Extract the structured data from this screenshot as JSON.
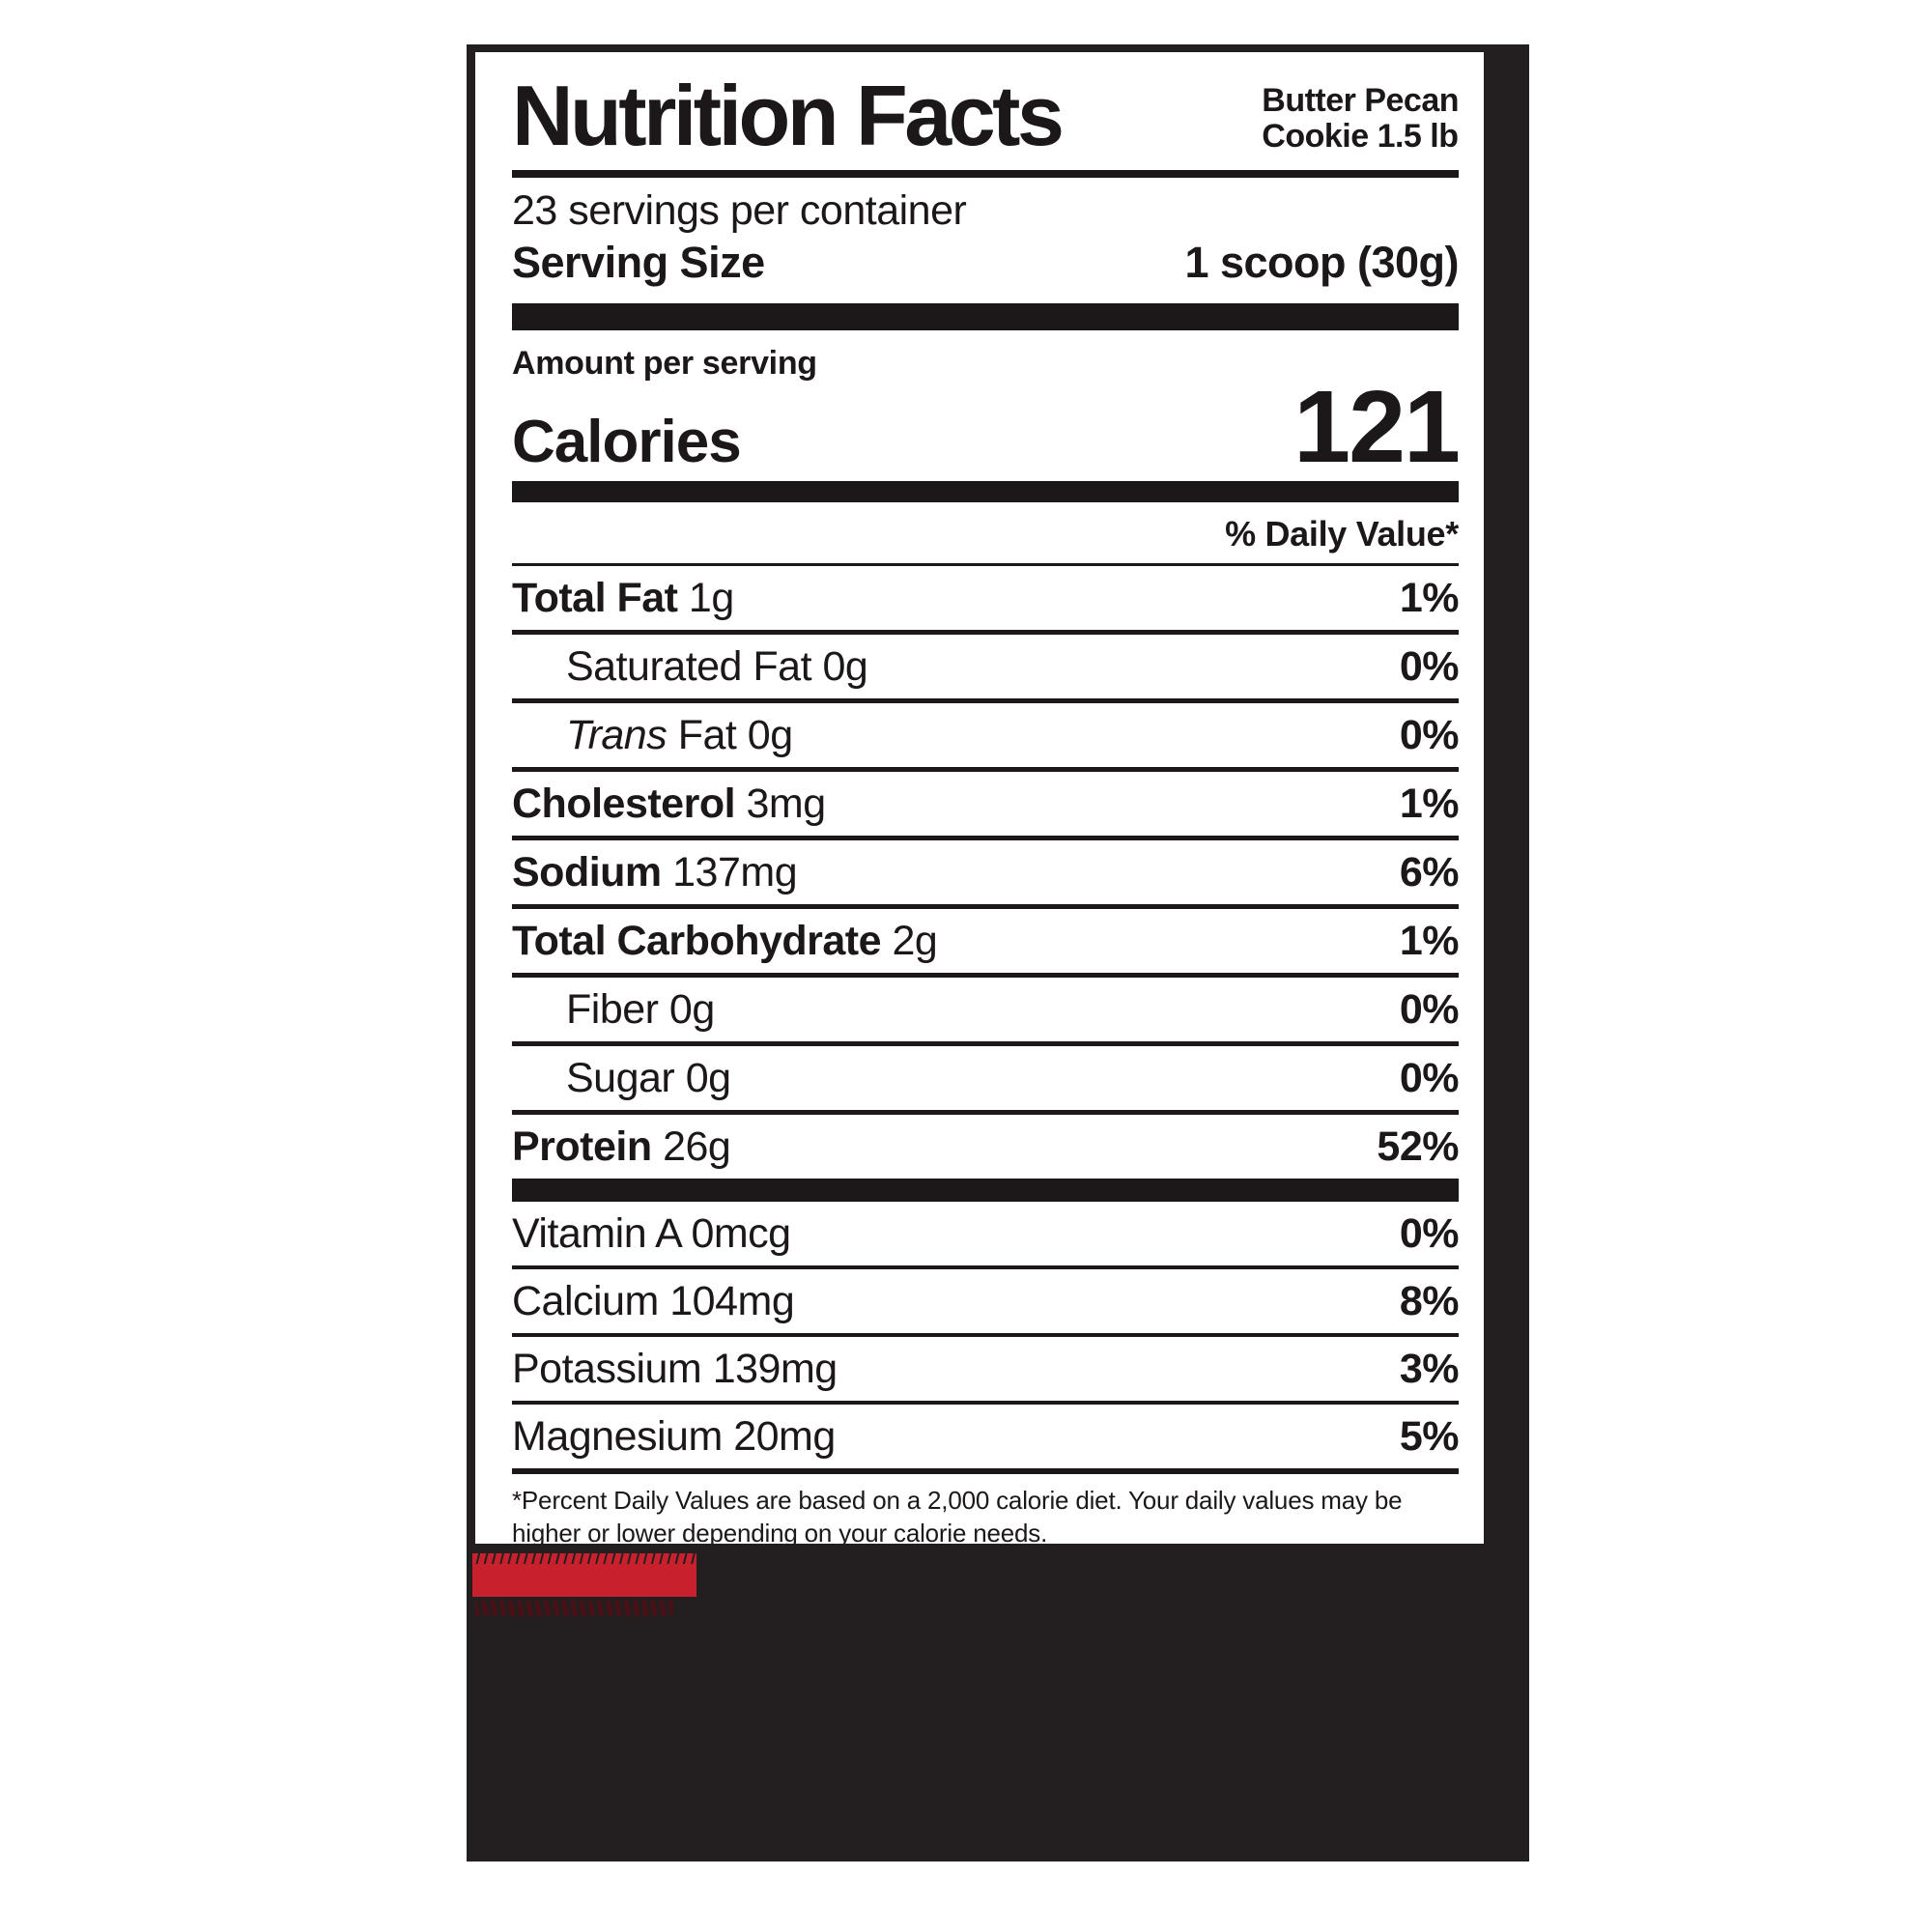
{
  "product": {
    "name_line1": "Butter Pecan",
    "name_line2": "Cookie 1.5 lb"
  },
  "label": {
    "title": "Nutrition Facts",
    "servings_per_container": "23 servings per container",
    "serving_size": {
      "label": "Serving Size",
      "value": "1 scoop (30g)"
    },
    "amount_per_serving": "Amount per serving",
    "calories": {
      "label": "Calories",
      "value": "121"
    },
    "daily_value_header": "% Daily Value*",
    "nutrients": [
      {
        "prefix": "",
        "name": "Total Fat",
        "amount": "1g",
        "dv": "1%"
      },
      {
        "prefix": "",
        "name": "Saturated Fat",
        "amount": "0g",
        "dv": "0%"
      },
      {
        "prefix": "Trans",
        "name": "Fat",
        "amount": "0g",
        "dv": "0%"
      },
      {
        "prefix": "",
        "name": "Cholesterol",
        "amount": "3mg",
        "dv": "1%"
      },
      {
        "prefix": "",
        "name": "Sodium",
        "amount": "137mg",
        "dv": "6%"
      },
      {
        "prefix": "",
        "name": "Total Carbohydrate",
        "amount": "2g",
        "dv": "1%"
      },
      {
        "prefix": "",
        "name": "Fiber",
        "amount": "0g",
        "dv": "0%"
      },
      {
        "prefix": "",
        "name": "Sugar",
        "amount": "0g",
        "dv": "0%"
      },
      {
        "prefix": "",
        "name": "Protein",
        "amount": "26g",
        "dv": "52%"
      }
    ],
    "micronutrients": [
      {
        "name": "Vitamin A",
        "amount": "0mcg",
        "dv": "0%"
      },
      {
        "name": "Calcium",
        "amount": "104mg",
        "dv": "8%"
      },
      {
        "name": "Potassium",
        "amount": "139mg",
        "dv": "3%"
      },
      {
        "name": "Magnesium",
        "amount": "20mg",
        "dv": "5%"
      }
    ],
    "footnote": "*Percent Daily Values are based on a 2,000 calorie diet. Your daily values may be higher or lower depending on your calorie needs."
  },
  "colors": {
    "ink_black": "#1c1819",
    "panel_black": "#231f20",
    "accent_red": "#c9202e",
    "dark_red": "#4a1016"
  }
}
